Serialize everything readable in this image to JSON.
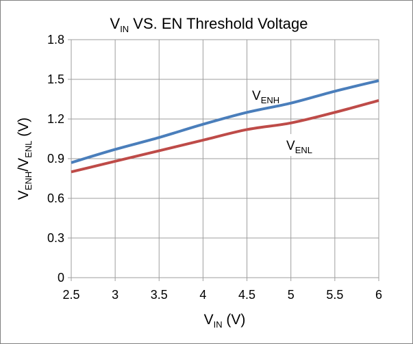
{
  "chart_data": {
    "type": "line",
    "title": {
      "main": "V",
      "sub": "IN",
      "rest": " VS. EN Threshold Voltage"
    },
    "xlabel": {
      "main": "V",
      "sub": "IN",
      "rest": " (V)"
    },
    "ylabel": {
      "main": "V",
      "sub1": "ENH",
      "sep": "/V",
      "sub2": "ENL",
      "rest": " (V)"
    },
    "xlim": [
      2.5,
      6
    ],
    "ylim": [
      0,
      1.8
    ],
    "x_ticks": [
      "2.5",
      "3",
      "3.5",
      "4",
      "4.5",
      "5",
      "5.5",
      "6"
    ],
    "y_ticks": [
      "0",
      "0.3",
      "0.6",
      "0.9",
      "1.2",
      "1.5",
      "1.8"
    ],
    "grid": true,
    "series": [
      {
        "name": {
          "main": "V",
          "sub": "ENH"
        },
        "color": "#4a7ebb",
        "x": [
          2.5,
          3,
          3.5,
          4,
          4.5,
          5,
          5.5,
          6
        ],
        "y": [
          0.87,
          0.97,
          1.06,
          1.16,
          1.25,
          1.32,
          1.41,
          1.49
        ]
      },
      {
        "name": {
          "main": "V",
          "sub": "ENL"
        },
        "color": "#be4b48",
        "x": [
          2.5,
          3,
          3.5,
          4,
          4.5,
          5,
          5.5,
          6
        ],
        "y": [
          0.8,
          0.88,
          0.96,
          1.04,
          1.12,
          1.17,
          1.25,
          1.34
        ]
      }
    ]
  }
}
